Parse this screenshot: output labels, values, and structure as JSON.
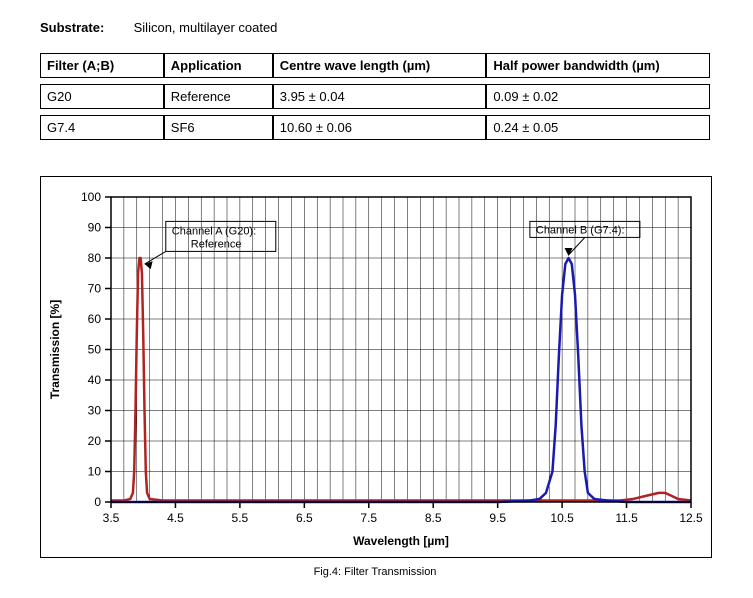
{
  "substrate": {
    "label": "Substrate:",
    "value": "Silicon, multilayer coated"
  },
  "table": {
    "headers": {
      "filter": "Filter (A;B)",
      "application": "Application",
      "centre": "Centre wave length (µm)",
      "hpbw": "Half power bandwidth (µm)"
    },
    "rows": [
      {
        "filter": "G20",
        "application": "Reference",
        "centre": "3.95 ± 0.04",
        "hpbw": "0.09 ± 0.02"
      },
      {
        "filter": "G7.4",
        "application": "SF6",
        "centre": "10.60 ± 0.06",
        "hpbw": "0.24 ± 0.05"
      }
    ]
  },
  "chart": {
    "caption": "Fig.4: Filter Transmission",
    "xlabel": "Wavelength [µm]",
    "ylabel": "Transmission [%]",
    "xlim": [
      3.5,
      12.5
    ],
    "ylim": [
      0,
      100
    ],
    "xtick_major_step": 1.0,
    "ytick_major_step": 10,
    "xtick_minor": 5,
    "background_color": "#ffffff",
    "grid_color": "#000000",
    "series": {
      "A": {
        "color": "#B22222",
        "line_width": 2.5,
        "callout": {
          "title": "Channel A (G20):",
          "subtitle": "Reference"
        },
        "points": [
          [
            3.5,
            0.5
          ],
          [
            3.6,
            0.5
          ],
          [
            3.7,
            0.5
          ],
          [
            3.8,
            1
          ],
          [
            3.84,
            3
          ],
          [
            3.86,
            10
          ],
          [
            3.88,
            30
          ],
          [
            3.9,
            55
          ],
          [
            3.92,
            75
          ],
          [
            3.94,
            80
          ],
          [
            3.96,
            80
          ],
          [
            3.98,
            75
          ],
          [
            4.0,
            55
          ],
          [
            4.02,
            30
          ],
          [
            4.04,
            10
          ],
          [
            4.06,
            3
          ],
          [
            4.1,
            1
          ],
          [
            4.3,
            0.5
          ],
          [
            5.0,
            0.5
          ],
          [
            6.0,
            0.5
          ],
          [
            7.0,
            0.5
          ],
          [
            8.0,
            0.5
          ],
          [
            9.0,
            0.5
          ],
          [
            10.0,
            0.5
          ],
          [
            10.5,
            0.5
          ],
          [
            11.0,
            0.5
          ],
          [
            11.4,
            0.5
          ],
          [
            11.6,
            1
          ],
          [
            11.8,
            2
          ],
          [
            12.0,
            3
          ],
          [
            12.1,
            3
          ],
          [
            12.2,
            2
          ],
          [
            12.3,
            1
          ],
          [
            12.5,
            0.5
          ]
        ]
      },
      "B": {
        "color": "#1a1aB0",
        "line_width": 2.5,
        "callout": {
          "title": "Channel B (G7.4):",
          "subtitle": ""
        },
        "points": [
          [
            3.5,
            0
          ],
          [
            4.0,
            0
          ],
          [
            5.0,
            0
          ],
          [
            6.0,
            0
          ],
          [
            7.0,
            0
          ],
          [
            8.0,
            0
          ],
          [
            9.0,
            0
          ],
          [
            9.5,
            0
          ],
          [
            10.0,
            0.5
          ],
          [
            10.15,
            1
          ],
          [
            10.25,
            3
          ],
          [
            10.35,
            10
          ],
          [
            10.4,
            25
          ],
          [
            10.45,
            48
          ],
          [
            10.5,
            68
          ],
          [
            10.55,
            78
          ],
          [
            10.6,
            80
          ],
          [
            10.65,
            78
          ],
          [
            10.7,
            68
          ],
          [
            10.75,
            48
          ],
          [
            10.8,
            25
          ],
          [
            10.85,
            10
          ],
          [
            10.9,
            3
          ],
          [
            11.0,
            1
          ],
          [
            11.2,
            0.5
          ],
          [
            11.5,
            0
          ],
          [
            12.0,
            0
          ],
          [
            12.5,
            0
          ]
        ]
      }
    }
  }
}
